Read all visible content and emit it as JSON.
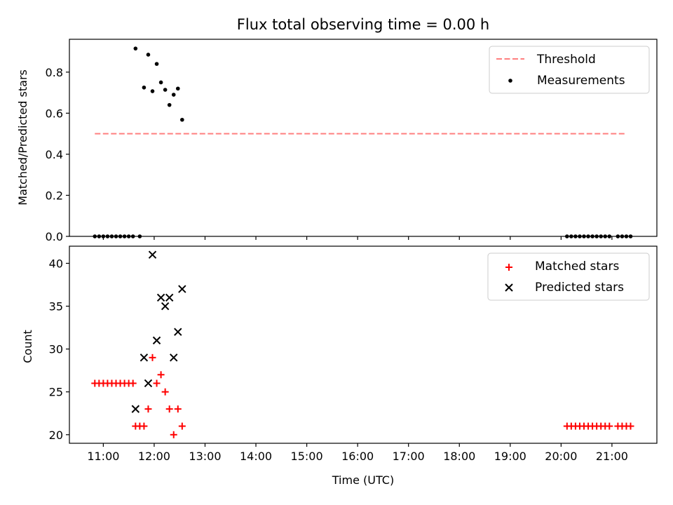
{
  "chart_data": [
    {
      "type": "scatter",
      "title": "Flux total observing time = 0.00 h",
      "xlabel": "",
      "ylabel": "Matched/Predicted stars",
      "xlim": [
        "10:20",
        "21:53"
      ],
      "ylim": [
        0,
        0.96
      ],
      "yticks": [
        0.0,
        0.2,
        0.4,
        0.6,
        0.8
      ],
      "ytick_labels": [
        "0.0",
        "0.2",
        "0.4",
        "0.6",
        "0.8"
      ],
      "grid": false,
      "legend_position": "top-right",
      "threshold": {
        "name": "Threshold",
        "y": 0.5,
        "x_start": "10:50",
        "x_end": "21:17",
        "color": "#ff7f7f",
        "style": "dashed"
      },
      "series": [
        {
          "name": "Measurements",
          "color": "#000000",
          "marker": "dot",
          "points": [
            {
              "x": "10:50",
              "y": 0
            },
            {
              "x": "10:55",
              "y": 0
            },
            {
              "x": "11:00",
              "y": 0
            },
            {
              "x": "11:05",
              "y": 0
            },
            {
              "x": "11:10",
              "y": 0
            },
            {
              "x": "11:15",
              "y": 0
            },
            {
              "x": "11:20",
              "y": 0
            },
            {
              "x": "11:25",
              "y": 0
            },
            {
              "x": "11:30",
              "y": 0
            },
            {
              "x": "11:35",
              "y": 0
            },
            {
              "x": "11:38",
              "y": 0.915
            },
            {
              "x": "11:43",
              "y": 0
            },
            {
              "x": "11:48",
              "y": 0.725
            },
            {
              "x": "11:53",
              "y": 0.885
            },
            {
              "x": "11:58",
              "y": 0.707
            },
            {
              "x": "12:03",
              "y": 0.84
            },
            {
              "x": "12:08",
              "y": 0.75
            },
            {
              "x": "12:13",
              "y": 0.714
            },
            {
              "x": "12:18",
              "y": 0.64
            },
            {
              "x": "12:23",
              "y": 0.69
            },
            {
              "x": "12:28",
              "y": 0.72
            },
            {
              "x": "12:33",
              "y": 0.568
            },
            {
              "x": "20:07",
              "y": 0
            },
            {
              "x": "20:12",
              "y": 0
            },
            {
              "x": "20:17",
              "y": 0
            },
            {
              "x": "20:22",
              "y": 0
            },
            {
              "x": "20:27",
              "y": 0
            },
            {
              "x": "20:32",
              "y": 0
            },
            {
              "x": "20:37",
              "y": 0
            },
            {
              "x": "20:42",
              "y": 0
            },
            {
              "x": "20:47",
              "y": 0
            },
            {
              "x": "20:52",
              "y": 0
            },
            {
              "x": "20:57",
              "y": 0
            },
            {
              "x": "21:07",
              "y": 0
            },
            {
              "x": "21:12",
              "y": 0
            },
            {
              "x": "21:17",
              "y": 0
            },
            {
              "x": "21:22",
              "y": 0
            }
          ]
        }
      ]
    },
    {
      "type": "scatter",
      "title": "",
      "xlabel": "Time (UTC)",
      "ylabel": "Count",
      "xlim": [
        "10:20",
        "21:53"
      ],
      "ylim": [
        19,
        42
      ],
      "xticks": [
        "11:00",
        "12:00",
        "13:00",
        "14:00",
        "15:00",
        "16:00",
        "17:00",
        "18:00",
        "19:00",
        "20:00",
        "21:00"
      ],
      "yticks": [
        20,
        25,
        30,
        35,
        40
      ],
      "ytick_labels": [
        "20",
        "25",
        "30",
        "35",
        "40"
      ],
      "grid": false,
      "legend_position": "top-right",
      "series": [
        {
          "name": "Matched stars",
          "color": "#ff0000",
          "marker": "plus",
          "points": [
            {
              "x": "10:50",
              "y": 26
            },
            {
              "x": "10:55",
              "y": 26
            },
            {
              "x": "11:00",
              "y": 26
            },
            {
              "x": "11:05",
              "y": 26
            },
            {
              "x": "11:10",
              "y": 26
            },
            {
              "x": "11:15",
              "y": 26
            },
            {
              "x": "11:20",
              "y": 26
            },
            {
              "x": "11:25",
              "y": 26
            },
            {
              "x": "11:30",
              "y": 26
            },
            {
              "x": "11:35",
              "y": 26
            },
            {
              "x": "11:38",
              "y": 21
            },
            {
              "x": "11:43",
              "y": 21
            },
            {
              "x": "11:48",
              "y": 21
            },
            {
              "x": "11:53",
              "y": 23
            },
            {
              "x": "11:58",
              "y": 29
            },
            {
              "x": "12:03",
              "y": 26
            },
            {
              "x": "12:08",
              "y": 27
            },
            {
              "x": "12:13",
              "y": 25
            },
            {
              "x": "12:18",
              "y": 23
            },
            {
              "x": "12:23",
              "y": 20
            },
            {
              "x": "12:28",
              "y": 23
            },
            {
              "x": "12:33",
              "y": 21
            },
            {
              "x": "20:07",
              "y": 21
            },
            {
              "x": "20:12",
              "y": 21
            },
            {
              "x": "20:17",
              "y": 21
            },
            {
              "x": "20:22",
              "y": 21
            },
            {
              "x": "20:27",
              "y": 21
            },
            {
              "x": "20:32",
              "y": 21
            },
            {
              "x": "20:37",
              "y": 21
            },
            {
              "x": "20:42",
              "y": 21
            },
            {
              "x": "20:47",
              "y": 21
            },
            {
              "x": "20:52",
              "y": 21
            },
            {
              "x": "20:57",
              "y": 21
            },
            {
              "x": "21:07",
              "y": 21
            },
            {
              "x": "21:12",
              "y": 21
            },
            {
              "x": "21:17",
              "y": 21
            },
            {
              "x": "21:22",
              "y": 21
            }
          ]
        },
        {
          "name": "Predicted stars",
          "color": "#000000",
          "marker": "x",
          "points": [
            {
              "x": "11:38",
              "y": 23
            },
            {
              "x": "11:48",
              "y": 29
            },
            {
              "x": "11:53",
              "y": 26
            },
            {
              "x": "11:58",
              "y": 41
            },
            {
              "x": "12:03",
              "y": 31
            },
            {
              "x": "12:08",
              "y": 36
            },
            {
              "x": "12:13",
              "y": 35
            },
            {
              "x": "12:18",
              "y": 36
            },
            {
              "x": "12:23",
              "y": 29
            },
            {
              "x": "12:28",
              "y": 32
            },
            {
              "x": "12:33",
              "y": 37
            }
          ]
        }
      ]
    }
  ]
}
